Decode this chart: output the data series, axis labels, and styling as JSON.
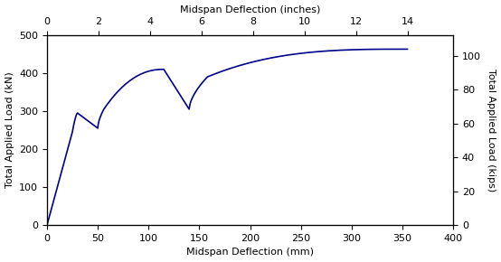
{
  "line_color": "#00008B",
  "line_width": 1.2,
  "xlabel_bottom": "Midspan Deflection (mm)",
  "xlabel_top": "Midspan Deflection (inches)",
  "ylabel_left": "Total Applied Load (kN)",
  "ylabel_right": "Total Applied Load (kips)",
  "xlim_mm": [
    0,
    400
  ],
  "ylim_kN": [
    0,
    500
  ],
  "xticks_mm": [
    0,
    50,
    100,
    150,
    200,
    250,
    300,
    350,
    400
  ],
  "xticks_in": [
    0,
    2,
    4,
    6,
    8,
    10,
    12,
    14
  ],
  "yticks_kN": [
    0,
    100,
    200,
    300,
    400,
    500
  ],
  "yticks_kips": [
    0,
    20,
    40,
    60,
    80,
    100
  ],
  "background_color": "#ffffff",
  "font_size": 8,
  "label_font_size": 8
}
